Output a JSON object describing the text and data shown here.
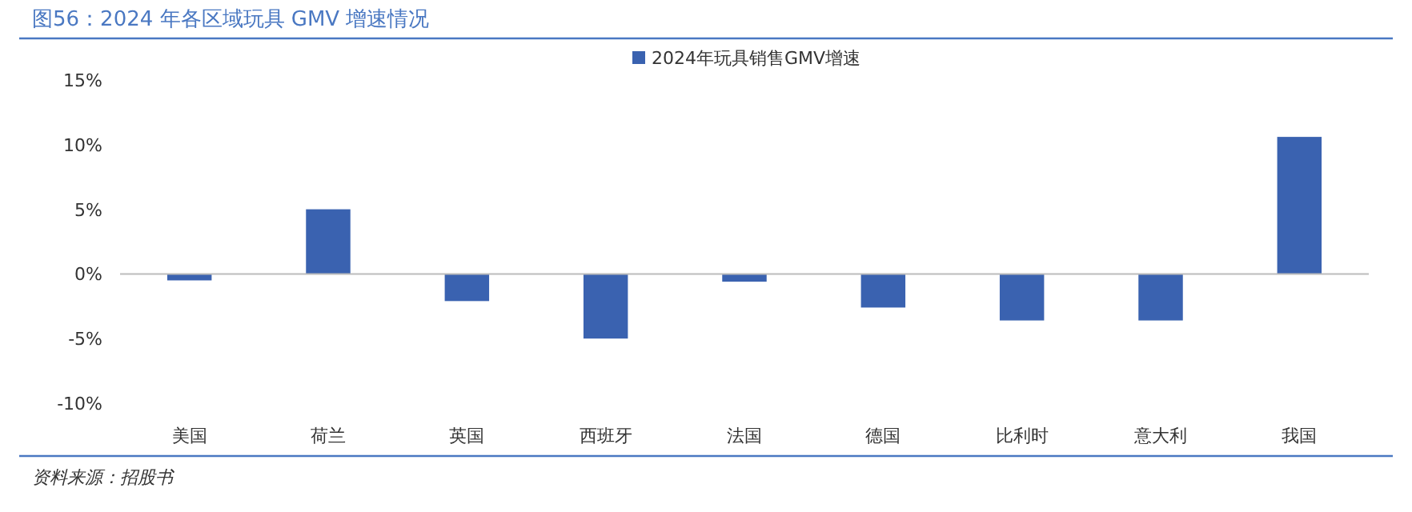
{
  "chart_data": {
    "type": "bar",
    "title": "图56：2024 年各区域玩具 GMV 增速情况",
    "categories": [
      "美国",
      "荷兰",
      "英国",
      "西班牙",
      "法国",
      "德国",
      "比利时",
      "意大利",
      "我国"
    ],
    "series": [
      {
        "name": "2024年玩具销售GMV增速",
        "color": "#3a62b0",
        "values": [
          -0.5,
          5.0,
          -2.1,
          -5.0,
          -0.6,
          -2.6,
          -3.6,
          -3.6,
          10.6
        ]
      }
    ],
    "ylim": [
      -10,
      15
    ],
    "yticks": [
      {
        "value": -10,
        "label": "-10%"
      },
      {
        "value": -5,
        "label": "-5%"
      },
      {
        "value": 0,
        "label": "0%"
      },
      {
        "value": 5,
        "label": "5%"
      },
      {
        "value": 10,
        "label": "10%"
      },
      {
        "value": 15,
        "label": "15%"
      }
    ],
    "legend": "top",
    "annotations": [
      "资料来源：招股书"
    ]
  }
}
